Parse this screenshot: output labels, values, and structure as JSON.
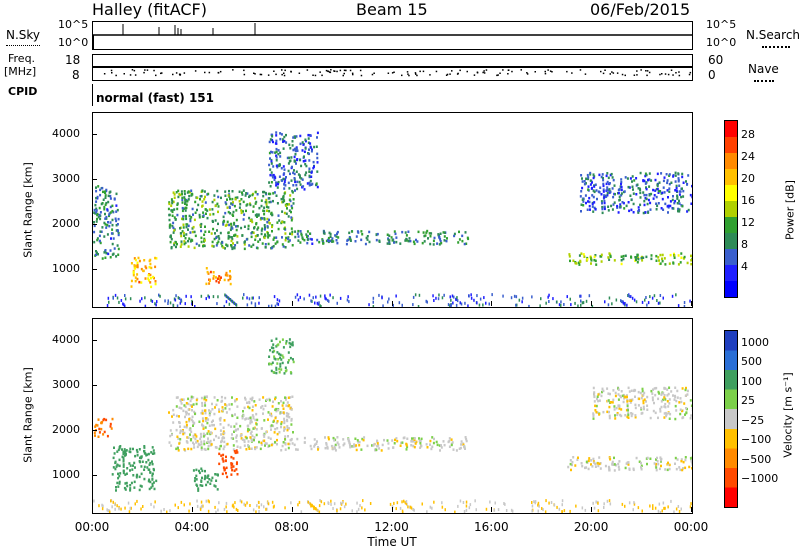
{
  "header": {
    "station": "Halley (fitACF)",
    "beam": "Beam 15",
    "date": "06/Feb/2015"
  },
  "top_labels": {
    "nsky": "N.Sky",
    "nsky_ticks": [
      "10^5",
      "10^0"
    ],
    "nsearch": "N.Search",
    "nsearch_ticks": [
      "10^5",
      "10^0"
    ],
    "freq": "Freq.",
    "freq_unit": "[MHz]",
    "freq_ticks": [
      "18",
      "8"
    ],
    "nave": "Nave",
    "nave_ticks": [
      "60",
      "0"
    ],
    "cpid": "CPID",
    "cpid_value": "normal (fast) 151"
  },
  "chart_data": [
    {
      "type": "heatmap",
      "name": "power",
      "ylabel": "Slant Range [km]",
      "y_ticks": [
        1000,
        2000,
        3000,
        4000
      ],
      "ylim": [
        180,
        4500
      ],
      "colorbar": {
        "label": "Power [dB]",
        "ticks": [
          "28",
          "24",
          "20",
          "16",
          "12",
          "8",
          "4"
        ],
        "colors": [
          "#ff0000",
          "#ff4000",
          "#ff8a00",
          "#ffc000",
          "#ffff00",
          "#b0d000",
          "#30a030",
          "#2e8b57",
          "#3a5fcd",
          "#1f1fff",
          "#0000ff"
        ]
      },
      "features": [
        {
          "from": "00:00",
          "to": "01:00",
          "range_km": [
            1250,
            2900
          ],
          "level_db": 8
        },
        {
          "from": "01:30",
          "to": "02:30",
          "range_km": [
            650,
            1300
          ],
          "level_db": 20
        },
        {
          "from": "03:00",
          "to": "08:00",
          "range_km": [
            1500,
            2800
          ],
          "level_db": 10
        },
        {
          "from": "04:30",
          "to": "05:30",
          "range_km": [
            700,
            1100
          ],
          "level_db": 22
        },
        {
          "from": "07:00",
          "to": "09:00",
          "range_km": [
            2800,
            4100
          ],
          "level_db": 6
        },
        {
          "from": "08:00",
          "to": "15:00",
          "range_km": [
            1600,
            1900
          ],
          "level_db": 8
        },
        {
          "from": "19:00",
          "to": "24:00",
          "range_km": [
            1150,
            1400
          ],
          "level_db": 12
        },
        {
          "from": "19:30",
          "to": "24:00",
          "range_km": [
            2300,
            3200
          ],
          "level_db": 6
        }
      ]
    },
    {
      "type": "heatmap",
      "name": "velocity",
      "ylabel": "Slant Range [km]",
      "y_ticks": [
        1000,
        2000,
        3000,
        4000
      ],
      "ylim": [
        180,
        4500
      ],
      "xlabel": "Time UT",
      "x_ticks": [
        "00:00",
        "04:00",
        "08:00",
        "12:00",
        "16:00",
        "20:00",
        "00:00"
      ],
      "colorbar": {
        "label": "Velocity [m s⁻¹]",
        "ticks": [
          "1000",
          "500",
          "100",
          "25",
          "−25",
          "−100",
          "−500",
          "−1000"
        ],
        "colors": [
          "#1f3fbf",
          "#2a6fd6",
          "#3f9f5f",
          "#7cd04a",
          "#c8c8c8",
          "#ffc000",
          "#ff8a00",
          "#ff4a00",
          "#ff0000"
        ]
      },
      "features": [
        {
          "from": "00:00",
          "to": "00:45",
          "range_km": [
            1900,
            2300
          ],
          "velocity": -300
        },
        {
          "from": "00:45",
          "to": "02:30",
          "range_km": [
            700,
            1700
          ],
          "velocity": 150
        },
        {
          "from": "03:00",
          "to": "08:00",
          "range_km": [
            1600,
            2800
          ],
          "velocity": 0
        },
        {
          "from": "04:00",
          "to": "05:00",
          "range_km": [
            700,
            1200
          ],
          "velocity": 150
        },
        {
          "from": "05:00",
          "to": "05:45",
          "range_km": [
            1000,
            1600
          ],
          "velocity": -400
        },
        {
          "from": "07:00",
          "to": "08:00",
          "range_km": [
            3300,
            4100
          ],
          "velocity": 80
        },
        {
          "from": "08:00",
          "to": "15:00",
          "range_km": [
            1600,
            1900
          ],
          "velocity": 0
        },
        {
          "from": "19:00",
          "to": "24:00",
          "range_km": [
            1150,
            1450
          ],
          "velocity": 0
        },
        {
          "from": "20:00",
          "to": "24:00",
          "range_km": [
            2300,
            3000
          ],
          "velocity": 0
        }
      ]
    }
  ]
}
